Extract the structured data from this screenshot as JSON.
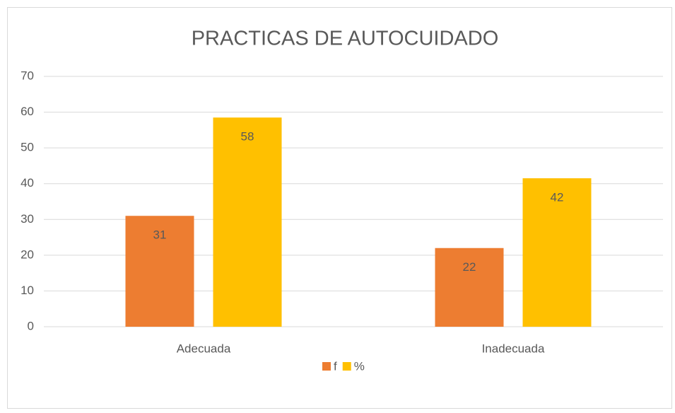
{
  "chart_data": {
    "type": "bar",
    "title": "PRACTICAS DE AUTOCUIDADO",
    "categories": [
      "Adecuada",
      "Inadecuada"
    ],
    "series": [
      {
        "name": "f",
        "color": "#ed7d31",
        "values": [
          31,
          22
        ]
      },
      {
        "name": "%",
        "color": "#ffc000",
        "values": [
          58.49,
          41.51
        ],
        "value_labels": [
          "58",
          "42"
        ]
      }
    ],
    "ylim": [
      0,
      70
    ],
    "yticks": [
      0,
      10,
      20,
      30,
      40,
      50,
      60,
      70
    ],
    "grid": true,
    "legend": "bottom"
  }
}
